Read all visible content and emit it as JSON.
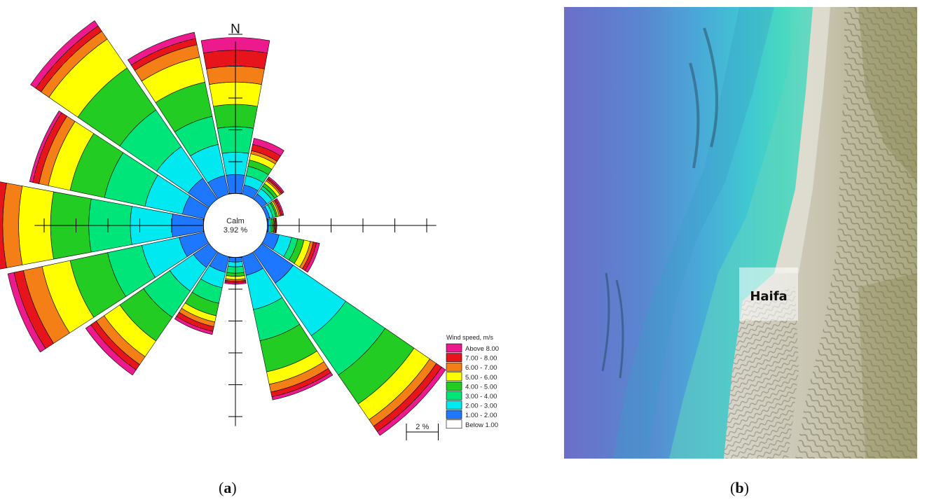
{
  "chart_data": {
    "type": "wind-rose",
    "north_label": "N",
    "calm": {
      "label": "Calm",
      "value": "3.92 %"
    },
    "ring_step_percent": 2,
    "scale_label": "2 %",
    "legend": {
      "title": "Wind speed, m/s",
      "placement": "bottom-right",
      "bins": [
        {
          "label": "Above 8.00",
          "color": "#ec1a8c"
        },
        {
          "label": "7.00 - 8.00",
          "color": "#e8141c"
        },
        {
          "label": "6.00 - 7.00",
          "color": "#f57f17"
        },
        {
          "label": "5.00 - 6.00",
          "color": "#ffff00"
        },
        {
          "label": "4.00 - 5.00",
          "color": "#22cc22"
        },
        {
          "label": "3.00 - 4.00",
          "color": "#00e57a"
        },
        {
          "label": "2.00 - 3.00",
          "color": "#00e8f0"
        },
        {
          "label": "1.00 - 2.00",
          "color": "#1e78ff"
        },
        {
          "label": "Below 1.00",
          "color": "#ffffff"
        }
      ]
    },
    "directions": [
      {
        "angle": 0,
        "cumulative": [
          1.0,
          1.6,
          2.3,
          3.1,
          3.8,
          4.5,
          5.0,
          5.5,
          5.9
        ]
      },
      {
        "angle": 22.5,
        "cumulative": [
          1.0,
          1.3,
          1.6,
          1.9,
          2.1,
          2.3,
          2.4,
          2.6,
          2.8
        ]
      },
      {
        "angle": 45,
        "cumulative": [
          1.0,
          1.2,
          1.4,
          1.5,
          1.6,
          1.7,
          1.75,
          1.8,
          1.85
        ]
      },
      {
        "angle": 67.5,
        "cumulative": [
          1.0,
          1.1,
          1.2,
          1.3,
          1.35,
          1.4,
          1.45,
          1.5,
          1.55
        ]
      },
      {
        "angle": 90,
        "cumulative": [
          1.0,
          1.05,
          1.1,
          1.15,
          1.2,
          1.22,
          1.25,
          1.28,
          1.3
        ]
      },
      {
        "angle": 112.5,
        "cumulative": [
          1.0,
          1.4,
          1.8,
          2.0,
          2.2,
          2.4,
          2.5,
          2.6,
          2.7
        ]
      },
      {
        "angle": 135,
        "cumulative": [
          1.0,
          2.2,
          4.2,
          5.7,
          6.8,
          7.4,
          7.65,
          7.85,
          8.0
        ]
      },
      {
        "angle": 157.5,
        "cumulative": [
          1.0,
          1.6,
          2.7,
          3.7,
          4.7,
          5.1,
          5.35,
          5.5,
          5.6
        ]
      },
      {
        "angle": 180,
        "cumulative": [
          1.0,
          1.15,
          1.3,
          1.5,
          1.6,
          1.7,
          1.75,
          1.8,
          1.85
        ]
      },
      {
        "angle": 202.5,
        "cumulative": [
          1.0,
          1.5,
          2.0,
          2.5,
          2.9,
          3.1,
          3.25,
          3.4,
          3.5
        ]
      },
      {
        "angle": 225,
        "cumulative": [
          1.0,
          1.6,
          2.5,
          3.5,
          4.4,
          5.0,
          5.3,
          5.5,
          5.7
        ]
      },
      {
        "angle": 247.5,
        "cumulative": [
          1.0,
          1.8,
          3.0,
          4.1,
          5.3,
          6.2,
          6.8,
          7.1,
          7.3
        ]
      },
      {
        "angle": 270,
        "cumulative": [
          1.0,
          2.0,
          3.3,
          4.6,
          5.8,
          6.8,
          7.3,
          7.7,
          8.0
        ]
      },
      {
        "angle": 292.5,
        "cumulative": [
          1.0,
          1.7,
          2.9,
          4.2,
          5.3,
          6.0,
          6.3,
          6.5,
          6.6
        ]
      },
      {
        "angle": 315,
        "cumulative": [
          1.0,
          1.8,
          3.0,
          4.4,
          6.0,
          7.1,
          7.4,
          7.6,
          7.8
        ]
      },
      {
        "angle": 337.5,
        "cumulative": [
          1.0,
          1.6,
          2.6,
          3.5,
          4.6,
          5.4,
          5.8,
          6.0,
          6.2
        ]
      }
    ]
  },
  "map": {
    "place_label": "Haifa"
  },
  "panels": {
    "a": "a",
    "b": "b"
  }
}
